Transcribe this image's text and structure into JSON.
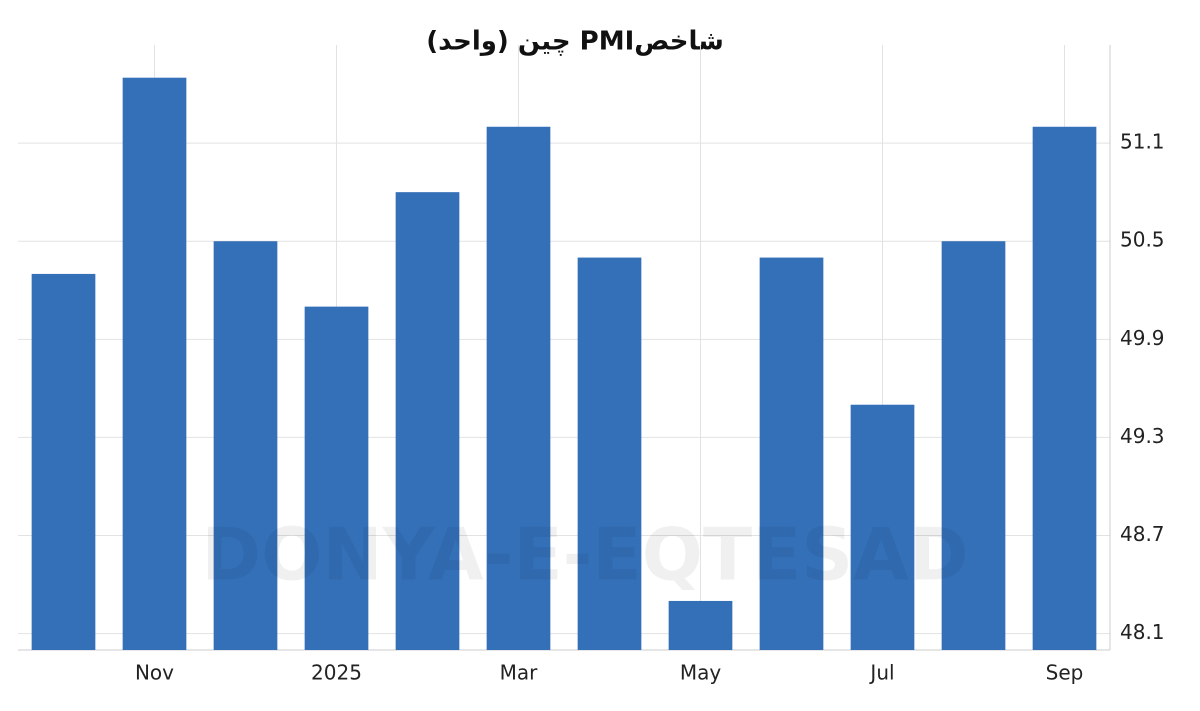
{
  "chart_data": {
    "type": "bar",
    "title": "شاخصPMI چین (واحد)",
    "watermark": "DONYA-E-EQTESAD",
    "categories": [
      null,
      "Nov",
      null,
      "2025",
      null,
      "Mar",
      null,
      "May",
      null,
      "Jul",
      null,
      "Sep"
    ],
    "values": [
      50.3,
      51.5,
      50.5,
      50.1,
      50.8,
      51.2,
      50.4,
      48.3,
      50.4,
      49.5,
      50.5,
      51.2
    ],
    "color": "#3470b8",
    "ylim": [
      48.0,
      51.7
    ],
    "yticks": [
      48.1,
      48.7,
      49.3,
      49.9,
      50.5,
      51.1
    ],
    "grid": true
  }
}
